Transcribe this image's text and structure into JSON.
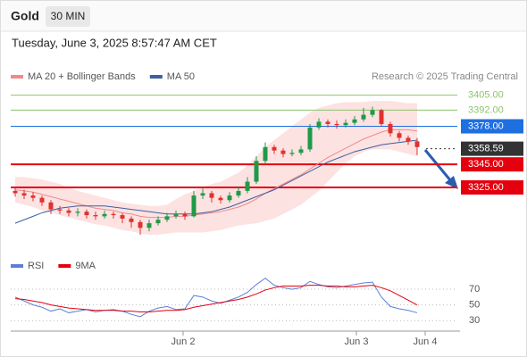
{
  "header": {
    "symbol": "Gold",
    "interval": "30 MIN",
    "timestamp": "Tuesday, June 3, 2025 8:57:47 AM CET",
    "source": "Research © 2025 Trading Central"
  },
  "chart_data": [
    {
      "type": "candlestick",
      "open": [
        3322,
        3320,
        3318,
        3316,
        3312,
        3306,
        3305,
        3303,
        3304,
        3301,
        3300,
        3302,
        3301,
        3298,
        3295,
        3290,
        3294,
        3297,
        3300,
        3302,
        3300,
        3318,
        3320,
        3316,
        3314,
        3318,
        3322,
        3330,
        3348,
        3360,
        3357,
        3354,
        3355,
        3358,
        3377,
        3382,
        3380,
        3379,
        3381,
        3384,
        3388,
        3392,
        3380,
        3372,
        3368,
        3365
      ],
      "high": [
        3325,
        3323,
        3321,
        3318,
        3314,
        3309,
        3307,
        3307,
        3306,
        3304,
        3305,
        3304,
        3303,
        3300,
        3297,
        3297,
        3300,
        3303,
        3305,
        3304,
        3322,
        3324,
        3322,
        3318,
        3321,
        3326,
        3334,
        3352,
        3364,
        3362,
        3359,
        3358,
        3361,
        3380,
        3385,
        3384,
        3383,
        3384,
        3387,
        3394,
        3395,
        3393,
        3382,
        3374,
        3370,
        3368
      ],
      "low": [
        3317,
        3315,
        3313,
        3309,
        3302,
        3302,
        3300,
        3300,
        3298,
        3297,
        3298,
        3298,
        3294,
        3290,
        3284,
        3287,
        3292,
        3295,
        3298,
        3297,
        3299,
        3315,
        3312,
        3311,
        3312,
        3316,
        3320,
        3328,
        3345,
        3354,
        3351,
        3352,
        3353,
        3356,
        3375,
        3377,
        3376,
        3377,
        3379,
        3382,
        3386,
        3378,
        3369,
        3365,
        3362,
        3353
      ],
      "close": [
        3320,
        3318,
        3316,
        3312,
        3306,
        3305,
        3303,
        3304,
        3301,
        3300,
        3302,
        3301,
        3298,
        3295,
        3290,
        3294,
        3297,
        3300,
        3302,
        3300,
        3318,
        3320,
        3316,
        3314,
        3318,
        3322,
        3330,
        3348,
        3360,
        3357,
        3354,
        3355,
        3358,
        3377,
        3382,
        3380,
        3379,
        3381,
        3384,
        3388,
        3392,
        3380,
        3372,
        3368,
        3365,
        3360
      ],
      "up_color": "#1f9a48",
      "down_color": "#e0312f",
      "overlays": [
        {
          "name": "MA 20 + Bollinger Bands",
          "color": "#f08a8a",
          "band_color": "#fde2e2",
          "values": [
            3323,
            3322,
            3321,
            3319,
            3317,
            3315,
            3313,
            3311,
            3309,
            3307,
            3306,
            3305,
            3303,
            3302,
            3300,
            3299,
            3299,
            3299,
            3300,
            3300,
            3301,
            3302,
            3303,
            3304,
            3306,
            3308,
            3311,
            3315,
            3320,
            3324,
            3328,
            3332,
            3336,
            3341,
            3346,
            3351,
            3355,
            3359,
            3363,
            3367,
            3370,
            3373,
            3375,
            3375,
            3375,
            3374
          ],
          "upper": [
            3334,
            3334,
            3333,
            3332,
            3330,
            3328,
            3325,
            3322,
            3320,
            3318,
            3316,
            3314,
            3312,
            3311,
            3310,
            3309,
            3309,
            3310,
            3315,
            3319,
            3322,
            3325,
            3328,
            3330,
            3334,
            3338,
            3344,
            3352,
            3360,
            3366,
            3372,
            3378,
            3384,
            3390,
            3394,
            3396,
            3398,
            3399,
            3399,
            3399,
            3400,
            3400,
            3400,
            3399,
            3398,
            3398
          ],
          "lower": [
            3312,
            3310,
            3308,
            3305,
            3303,
            3301,
            3299,
            3297,
            3295,
            3293,
            3292,
            3290,
            3288,
            3287,
            3285,
            3284,
            3284,
            3285,
            3286,
            3286,
            3286,
            3286,
            3287,
            3288,
            3290,
            3292,
            3293,
            3294,
            3296,
            3298,
            3302,
            3306,
            3310,
            3316,
            3322,
            3330,
            3338,
            3346,
            3352,
            3356,
            3358,
            3358,
            3358,
            3356,
            3354,
            3352
          ]
        },
        {
          "name": "MA 50",
          "color": "#3d5fa0",
          "values": [
            3294,
            3297,
            3300,
            3303,
            3305,
            3307,
            3308,
            3309,
            3309,
            3309,
            3309,
            3308,
            3307,
            3306,
            3305,
            3304,
            3303,
            3302,
            3302,
            3302,
            3302,
            3303,
            3304,
            3306,
            3308,
            3311,
            3314,
            3317,
            3320,
            3323,
            3327,
            3331,
            3335,
            3339,
            3343,
            3347,
            3350,
            3353,
            3356,
            3358,
            3360,
            3362,
            3363,
            3364,
            3365,
            3366
          ]
        }
      ],
      "levels": [
        {
          "value": 3405,
          "label": "3405.00",
          "color": "#8cc56b",
          "style": "thin",
          "label_style": "text"
        },
        {
          "value": 3392,
          "label": "3392.00",
          "color": "#8cc56b",
          "style": "thin",
          "label_style": "text"
        },
        {
          "value": 3378,
          "label": "3378.00",
          "color": "#1e6fe0",
          "style": "thin",
          "label_style": "box"
        },
        {
          "value": 3358.59,
          "label": "3358.59",
          "color": "#333333",
          "style": "dotted",
          "label_style": "box"
        },
        {
          "value": 3345,
          "label": "3345.00",
          "color": "#e4000f",
          "style": "thick",
          "label_style": "box"
        },
        {
          "value": 3325,
          "label": "3325.00",
          "color": "#e4000f",
          "style": "thick",
          "label_style": "box"
        }
      ],
      "xlim": [
        0,
        50
      ],
      "ylim": [
        3267,
        3414
      ]
    },
    {
      "type": "line",
      "series": [
        {
          "name": "RSI",
          "color": "#5b7fd6",
          "values": [
            60,
            55,
            50,
            47,
            42,
            45,
            40,
            42,
            44,
            41,
            43,
            44,
            42,
            38,
            35,
            42,
            46,
            48,
            44,
            45,
            62,
            60,
            55,
            52,
            56,
            60,
            66,
            76,
            84,
            75,
            72,
            70,
            72,
            80,
            76,
            73,
            72,
            74,
            76,
            78,
            79,
            60,
            48,
            45,
            43,
            40
          ]
        },
        {
          "name": "9MA",
          "color": "#e4000f",
          "values": [
            58,
            57,
            55,
            53,
            50,
            48,
            46,
            45,
            44,
            43,
            43,
            43,
            42,
            42,
            41,
            41,
            42,
            43,
            43,
            44,
            47,
            49,
            51,
            53,
            55,
            57,
            60,
            64,
            69,
            72,
            74,
            74,
            74,
            75,
            75,
            74,
            74,
            73,
            73,
            74,
            75,
            72,
            68,
            62,
            56,
            50
          ]
        }
      ],
      "xlim": [
        0,
        50
      ],
      "xticks": [
        {
          "value": 19.3,
          "label": "Jun 2"
        },
        {
          "value": 38.7,
          "label": "Jun 3"
        },
        {
          "value": 46.4,
          "label": "Jun 4"
        }
      ],
      "ylim": [
        20,
        86
      ],
      "yticks": [
        30,
        50,
        70
      ]
    }
  ]
}
